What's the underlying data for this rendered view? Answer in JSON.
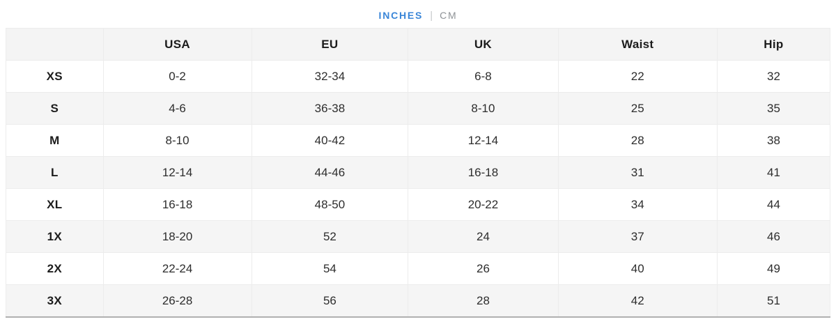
{
  "tabs": {
    "inches_label": "INCHES",
    "cm_label": "CM",
    "divider": "|",
    "active_tab": "INCHES",
    "active_color": "#3a86d8",
    "inactive_color": "#8f9397"
  },
  "size_chart": {
    "unit": "inches",
    "columns": {
      "size": "",
      "usa": "USA",
      "eu": "EU",
      "uk": "UK",
      "waist": "Waist",
      "hip": "Hip"
    },
    "rows": [
      {
        "size": "XS",
        "usa": "0-2",
        "eu": "32-34",
        "uk": "6-8",
        "waist": "22",
        "hip": "32"
      },
      {
        "size": "S",
        "usa": "4-6",
        "eu": "36-38",
        "uk": "8-10",
        "waist": "25",
        "hip": "35"
      },
      {
        "size": "M",
        "usa": "8-10",
        "eu": "40-42",
        "uk": "12-14",
        "waist": "28",
        "hip": "38"
      },
      {
        "size": "L",
        "usa": "12-14",
        "eu": "44-46",
        "uk": "16-18",
        "waist": "31",
        "hip": "41"
      },
      {
        "size": "XL",
        "usa": "16-18",
        "eu": "48-50",
        "uk": "20-22",
        "waist": "34",
        "hip": "44"
      },
      {
        "size": "1X",
        "usa": "18-20",
        "eu": "52",
        "uk": "24",
        "waist": "37",
        "hip": "46"
      },
      {
        "size": "2X",
        "usa": "22-24",
        "eu": "54",
        "uk": "26",
        "waist": "40",
        "hip": "49"
      },
      {
        "size": "3X",
        "usa": "26-28",
        "eu": "56",
        "uk": "28",
        "waist": "42",
        "hip": "51"
      }
    ]
  },
  "colors": {
    "header_bg": "#f4f4f4",
    "stripe_bg": "#f5f5f5",
    "cell_border": "#ececec",
    "table_bottom_border": "#b0b0b0",
    "text": "#2d2d2d"
  }
}
